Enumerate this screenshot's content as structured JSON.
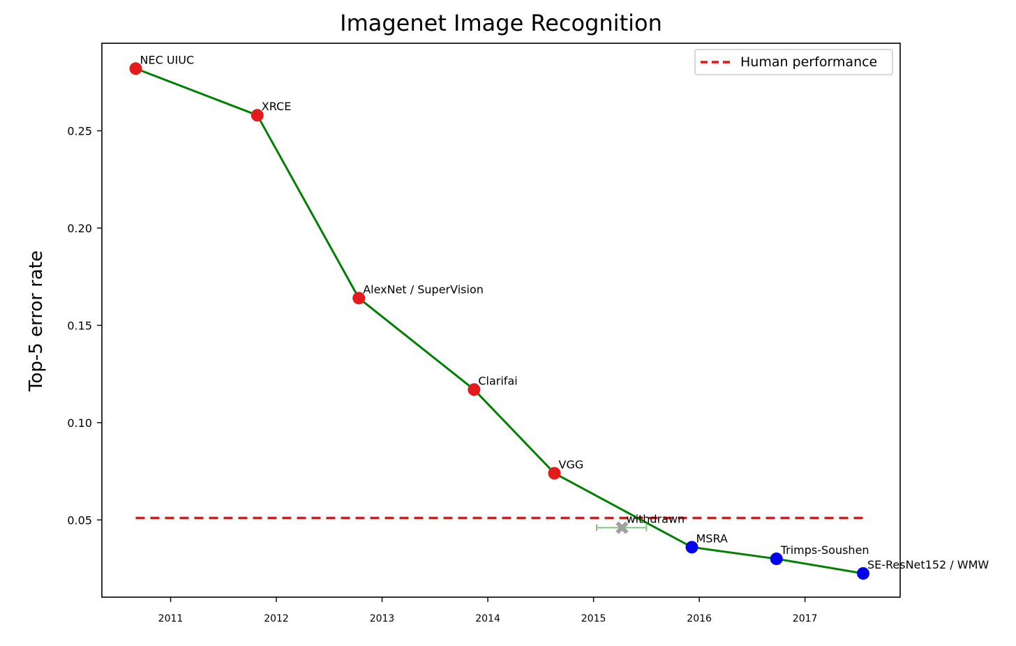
{
  "chart_data": {
    "type": "line",
    "title": "Imagenet Image Recognition",
    "xlabel": "",
    "ylabel": "Top-5 error rate",
    "xlim": [
      2010.35,
      2017.9
    ],
    "ylim": [
      0.0103,
      0.295
    ],
    "x_ticks": [
      {
        "value": 2011,
        "label": "2011"
      },
      {
        "value": 2012,
        "label": "2012"
      },
      {
        "value": 2013,
        "label": "2013"
      },
      {
        "value": 2014,
        "label": "2014"
      },
      {
        "value": 2015,
        "label": "2015"
      },
      {
        "value": 2016,
        "label": "2016"
      },
      {
        "value": 2017,
        "label": "2017"
      }
    ],
    "y_ticks": [
      {
        "value": 0.05,
        "label": "0.05"
      },
      {
        "value": 0.1,
        "label": "0.10"
      },
      {
        "value": 0.15,
        "label": "0.15"
      },
      {
        "value": 0.2,
        "label": "0.20"
      },
      {
        "value": 0.25,
        "label": "0.25"
      }
    ],
    "trend_line": {
      "color": "#008000"
    },
    "points": [
      {
        "label": "NEC UIUC",
        "x": 2010.67,
        "y": 0.282,
        "color": "#e41a1c"
      },
      {
        "label": "XRCE",
        "x": 2011.82,
        "y": 0.258,
        "color": "#e41a1c"
      },
      {
        "label": "AlexNet / SuperVision",
        "x": 2012.78,
        "y": 0.164,
        "color": "#e41a1c"
      },
      {
        "label": "Clarifai",
        "x": 2013.87,
        "y": 0.117,
        "color": "#e41a1c"
      },
      {
        "label": "VGG",
        "x": 2014.63,
        "y": 0.074,
        "color": "#e41a1c"
      },
      {
        "label": "MSRA",
        "x": 2015.93,
        "y": 0.036,
        "color": "#0000ee"
      },
      {
        "label": "Trimps-Soushen",
        "x": 2016.73,
        "y": 0.03,
        "color": "#0000ee"
      },
      {
        "label": "SE-ResNet152 / WMW",
        "x": 2017.55,
        "y": 0.0225,
        "color": "#0000ee"
      }
    ],
    "withdrawn": {
      "label": "withdrawn",
      "x": 2015.27,
      "y": 0.046,
      "xerr": [
        2015.03,
        2015.5
      ],
      "color": "#a0a0a0",
      "err_color": "#7fc47f"
    },
    "human_performance": {
      "label": "Human performance",
      "y": 0.051,
      "x_start": 2010.67,
      "x_end": 2017.55,
      "color": "#ee1111"
    },
    "legend": {
      "placement": "top-right",
      "entries": [
        "Human performance"
      ]
    }
  }
}
